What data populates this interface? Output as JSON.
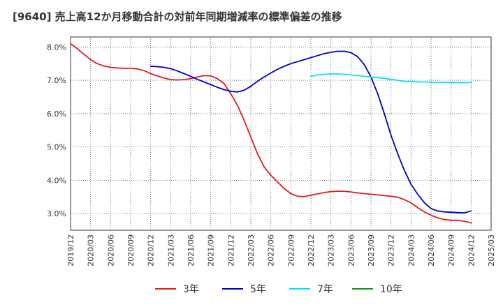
{
  "title": "[9640]  売上高12か月移動合計の対前年同期増減率の標準偏差の推移",
  "chart_data": {
    "type": "line",
    "title": "[9640]  売上高12か月移動合計の対前年同期増減率の標準偏差の推移",
    "xlabel": "",
    "ylabel": "",
    "ylim": [
      2.5,
      8.3
    ],
    "yticks": [
      3.0,
      4.0,
      5.0,
      6.0,
      7.0,
      8.0
    ],
    "ytick_labels": [
      "3.0%",
      "4.0%",
      "5.0%",
      "6.0%",
      "7.0%",
      "8.0%"
    ],
    "x_start": "2019/12",
    "x_labels": [
      "2019/12",
      "2020/03",
      "2020/06",
      "2020/09",
      "2020/12",
      "2021/03",
      "2021/06",
      "2021/09",
      "2021/12",
      "2022/03",
      "2022/06",
      "2022/09",
      "2022/12",
      "2023/03",
      "2023/06",
      "2023/09",
      "2023/12",
      "2024/03",
      "2024/06",
      "2024/09",
      "2024/12",
      "2025/03"
    ],
    "grid": true,
    "legend_position": "bottom",
    "series": [
      {
        "name": "3年",
        "color": "#e41a1c",
        "x": [
          "2019/12",
          "2020/01",
          "2020/02",
          "2020/03",
          "2020/04",
          "2020/05",
          "2020/06",
          "2020/07",
          "2020/08",
          "2020/09",
          "2020/10",
          "2020/11",
          "2020/12",
          "2021/01",
          "2021/02",
          "2021/03",
          "2021/04",
          "2021/05",
          "2021/06",
          "2021/07",
          "2021/08",
          "2021/09",
          "2021/10",
          "2021/11",
          "2021/12",
          "2022/01",
          "2022/02",
          "2022/03",
          "2022/04",
          "2022/05",
          "2022/06",
          "2022/07",
          "2022/08",
          "2022/09",
          "2022/10",
          "2022/11",
          "2022/12",
          "2023/01",
          "2023/02",
          "2023/03",
          "2023/04",
          "2023/05",
          "2023/06",
          "2023/07",
          "2023/08",
          "2023/09",
          "2023/10",
          "2023/11",
          "2023/12",
          "2024/01",
          "2024/02",
          "2024/03",
          "2024/04",
          "2024/05",
          "2024/06",
          "2024/07",
          "2024/08",
          "2024/09",
          "2024/10",
          "2024/11",
          "2024/12"
        ],
        "values": [
          8.1,
          7.95,
          7.78,
          7.62,
          7.5,
          7.43,
          7.39,
          7.37,
          7.36,
          7.36,
          7.34,
          7.29,
          7.2,
          7.13,
          7.07,
          7.02,
          7.01,
          7.02,
          7.05,
          7.1,
          7.14,
          7.13,
          7.05,
          6.9,
          6.6,
          6.25,
          5.8,
          5.3,
          4.8,
          4.4,
          4.15,
          3.95,
          3.75,
          3.6,
          3.52,
          3.51,
          3.55,
          3.59,
          3.63,
          3.66,
          3.67,
          3.67,
          3.65,
          3.62,
          3.6,
          3.58,
          3.56,
          3.54,
          3.52,
          3.49,
          3.42,
          3.32,
          3.18,
          3.05,
          2.95,
          2.87,
          2.82,
          2.8,
          2.8,
          2.77,
          2.72
        ]
      },
      {
        "name": "5年",
        "color": "#0000cc",
        "x": [
          "2020/12",
          "2021/01",
          "2021/02",
          "2021/03",
          "2021/04",
          "2021/05",
          "2021/06",
          "2021/07",
          "2021/08",
          "2021/09",
          "2021/10",
          "2021/11",
          "2021/12",
          "2022/01",
          "2022/02",
          "2022/03",
          "2022/04",
          "2022/05",
          "2022/06",
          "2022/07",
          "2022/08",
          "2022/09",
          "2022/10",
          "2022/11",
          "2022/12",
          "2023/01",
          "2023/02",
          "2023/03",
          "2023/04",
          "2023/05",
          "2023/06",
          "2023/07",
          "2023/08",
          "2023/09",
          "2023/10",
          "2023/11",
          "2023/12",
          "2024/01",
          "2024/02",
          "2024/03",
          "2024/04",
          "2024/05",
          "2024/06",
          "2024/07",
          "2024/08",
          "2024/09",
          "2024/10",
          "2024/11",
          "2024/12"
        ],
        "values": [
          7.42,
          7.41,
          7.39,
          7.35,
          7.28,
          7.2,
          7.12,
          7.03,
          6.95,
          6.87,
          6.79,
          6.72,
          6.67,
          6.65,
          6.7,
          6.82,
          6.97,
          7.1,
          7.22,
          7.33,
          7.42,
          7.5,
          7.56,
          7.62,
          7.68,
          7.74,
          7.8,
          7.84,
          7.87,
          7.87,
          7.83,
          7.71,
          7.47,
          7.1,
          6.6,
          6.0,
          5.35,
          4.8,
          4.3,
          3.88,
          3.58,
          3.33,
          3.15,
          3.08,
          3.05,
          3.04,
          3.03,
          3.02,
          3.08
        ]
      },
      {
        "name": "7年",
        "color": "#00e5ee",
        "x": [
          "2022/12",
          "2023/01",
          "2023/02",
          "2023/03",
          "2023/04",
          "2023/05",
          "2023/06",
          "2023/07",
          "2023/08",
          "2023/09",
          "2023/10",
          "2023/11",
          "2023/12",
          "2024/01",
          "2024/02",
          "2024/03",
          "2024/04",
          "2024/05",
          "2024/06",
          "2024/07",
          "2024/08",
          "2024/09",
          "2024/10",
          "2024/11",
          "2024/12"
        ],
        "values": [
          7.12,
          7.16,
          7.18,
          7.19,
          7.19,
          7.18,
          7.16,
          7.14,
          7.12,
          7.1,
          7.08,
          7.06,
          7.03,
          7.0,
          6.97,
          6.96,
          6.95,
          6.95,
          6.94,
          6.94,
          6.94,
          6.93,
          6.93,
          6.93,
          6.93
        ]
      },
      {
        "name": "10年",
        "color": "#228b22",
        "x": [],
        "values": []
      }
    ]
  }
}
